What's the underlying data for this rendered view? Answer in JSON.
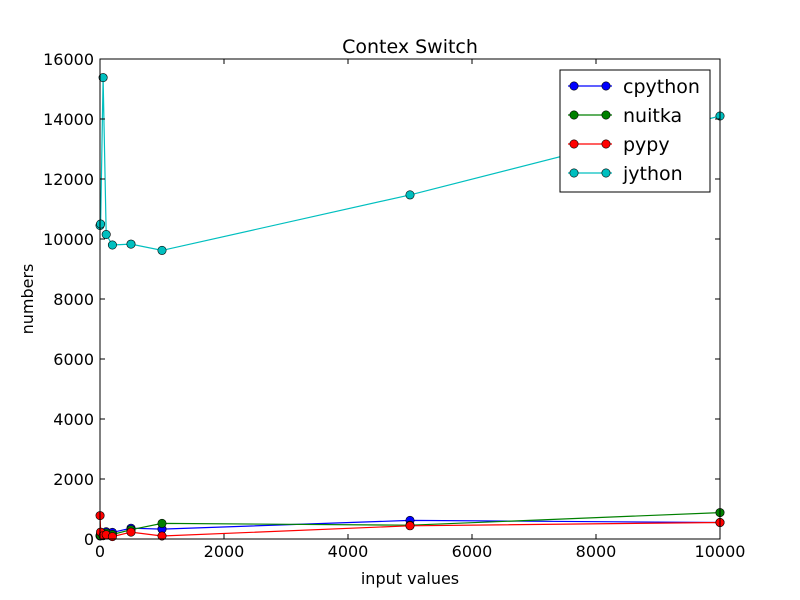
{
  "chart_data": {
    "type": "line",
    "title": "Contex Switch",
    "xlabel": "input values",
    "ylabel": "numbers",
    "xlim": [
      0,
      10000
    ],
    "ylim": [
      0,
      16000
    ],
    "xticks": [
      0,
      2000,
      4000,
      6000,
      8000,
      10000
    ],
    "yticks": [
      0,
      2000,
      4000,
      6000,
      8000,
      10000,
      12000,
      14000,
      16000
    ],
    "grid": false,
    "legend_position": "top-right",
    "x": [
      1,
      10,
      50,
      100,
      200,
      500,
      1000,
      5000,
      10000
    ],
    "series": [
      {
        "name": "cpython",
        "color": "#0000ff",
        "values": [
          100,
          180,
          150,
          240,
          220,
          360,
          330,
          620,
          550
        ]
      },
      {
        "name": "nuitka",
        "color": "#008000",
        "values": [
          120,
          110,
          130,
          200,
          150,
          310,
          520,
          460,
          880
        ]
      },
      {
        "name": "pypy",
        "color": "#ff0000",
        "values": [
          780,
          230,
          110,
          140,
          80,
          230,
          100,
          440,
          550
        ]
      },
      {
        "name": "jython",
        "color": "#00bfbf",
        "values": [
          10450,
          10500,
          15380,
          10150,
          9800,
          9830,
          9620,
          11470,
          14100
        ]
      }
    ]
  }
}
